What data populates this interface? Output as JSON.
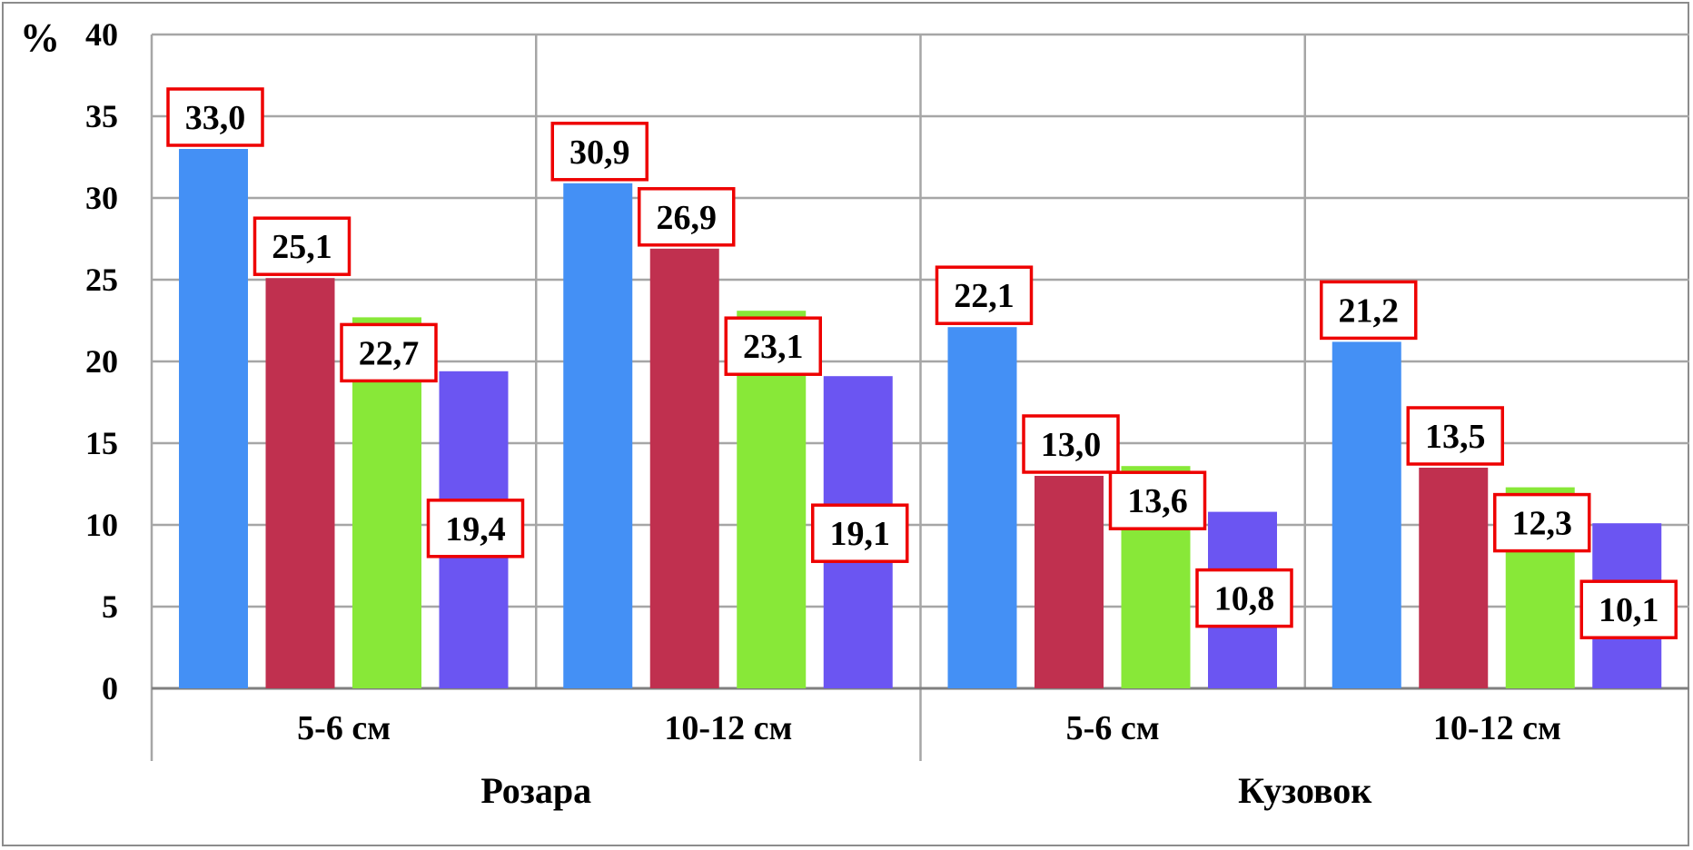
{
  "chart_data": {
    "type": "bar",
    "ylabel": "%",
    "ylim": [
      0,
      40
    ],
    "yticks": [
      "0",
      "5",
      "10",
      "15",
      "20",
      "25",
      "30",
      "35",
      "40"
    ],
    "groups": [
      {
        "label": "Розара",
        "categories": [
          {
            "label": "5-6 см",
            "values": [
              33.0,
              25.1,
              22.7,
              19.4
            ],
            "labels": [
              "33,0",
              "25,1",
              "22,7",
              "19,4"
            ]
          },
          {
            "label": "10-12 см",
            "values": [
              30.9,
              26.9,
              23.1,
              19.1
            ],
            "labels": [
              "30,9",
              "26,9",
              "23,1",
              "19,1"
            ]
          }
        ]
      },
      {
        "label": "Кузовок",
        "categories": [
          {
            "label": "5-6 см",
            "values": [
              22.1,
              13.0,
              13.6,
              10.8
            ],
            "labels": [
              "22,1",
              "13,0",
              "13,6",
              "10,8"
            ]
          },
          {
            "label": "10-12 см",
            "values": [
              21.2,
              13.5,
              12.3,
              10.1
            ],
            "labels": [
              "21,2",
              "13,5",
              "12,3",
              "10,1"
            ]
          }
        ]
      }
    ],
    "series_colors": [
      "#4490f5",
      "#c0304f",
      "#88e838",
      "#6b55f2"
    ],
    "label_box_color": "#ee0000",
    "gridline_color": "#a6a6a6",
    "grid": true,
    "legend": "none"
  }
}
